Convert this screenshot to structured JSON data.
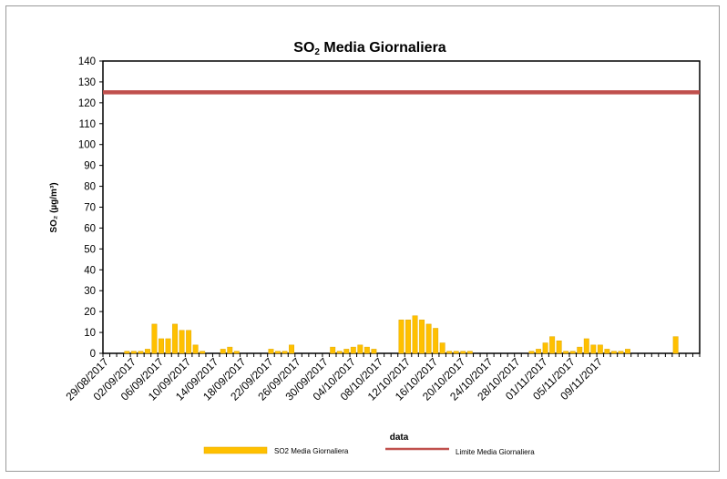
{
  "chart_data": {
    "type": "bar",
    "title_main": "SO",
    "title_sub": "2",
    "title_rest": " Media Giornaliera",
    "xlabel": "data",
    "ylabel": "SO₂ (µg/m³)",
    "ylim": [
      0,
      140
    ],
    "ytick_step": 10,
    "grid": false,
    "x_tick_labels": [
      "29/08/2017",
      "02/09/2017",
      "06/09/2017",
      "10/09/2017",
      "14/09/2017",
      "18/09/2017",
      "22/09/2017",
      "26/09/2017",
      "30/09/2017",
      "04/10/2017",
      "08/10/2017",
      "12/10/2017",
      "16/10/2017",
      "20/10/2017",
      "24/10/2017",
      "28/10/2017",
      "01/11/2017",
      "05/11/2017",
      "09/11/2017"
    ],
    "start_label": "29/08/2017",
    "series": [
      {
        "name": "SO2 Media Giornaliera",
        "kind": "bar",
        "color": "#FFC000",
        "values": [
          0,
          0,
          0,
          1,
          1,
          1,
          2,
          14,
          7,
          7,
          14,
          11,
          11,
          4,
          1,
          0,
          0,
          2,
          3,
          1,
          0,
          0,
          0,
          0,
          2,
          1,
          1,
          4,
          0,
          0,
          0,
          0,
          0,
          3,
          1,
          2,
          3,
          4,
          3,
          2,
          0,
          0,
          0,
          16,
          16,
          18,
          16,
          14,
          12,
          5,
          1,
          1,
          1,
          1,
          0,
          0,
          0,
          0,
          0,
          0,
          0,
          0,
          1,
          2,
          5,
          8,
          6,
          1,
          1,
          3,
          7,
          4,
          4,
          2,
          1,
          1,
          2,
          0,
          0,
          0,
          0,
          0,
          0,
          8,
          0,
          0,
          0
        ]
      },
      {
        "name": "Limite Media Giornaliera",
        "kind": "line",
        "color": "#C0504D",
        "value": 125
      }
    ],
    "legend_position": "bottom"
  }
}
